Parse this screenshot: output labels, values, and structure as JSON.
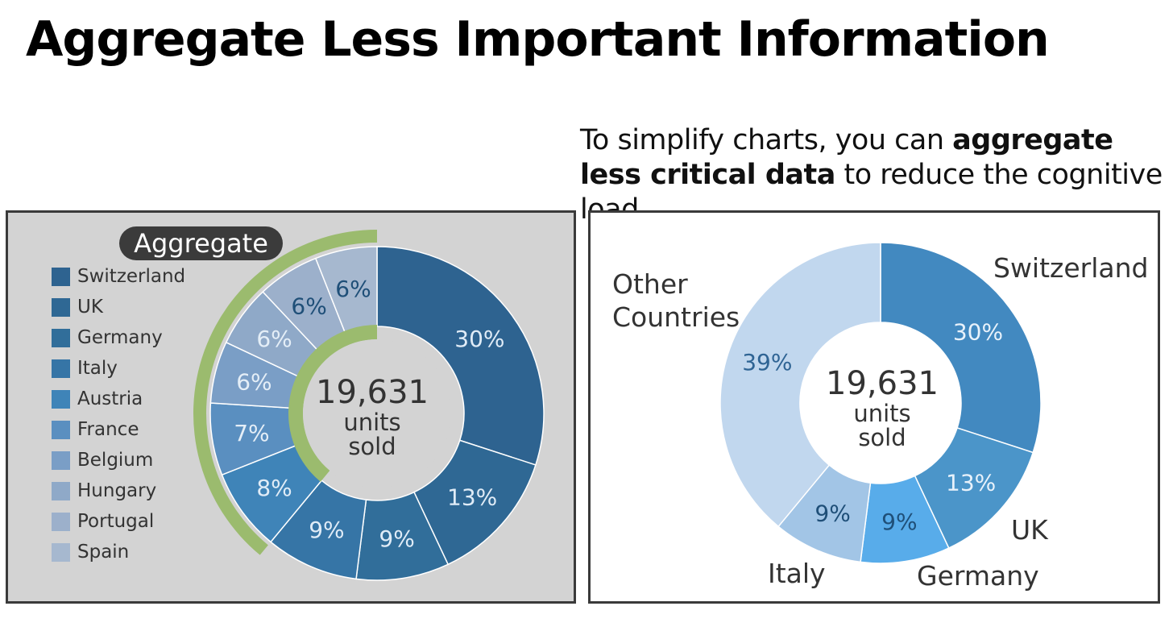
{
  "title": "Aggregate Less Important Information",
  "intro": {
    "part1": "To simplify charts, you can ",
    "bold": "aggregate less critical data",
    "part2": " to reduce the cognitive load."
  },
  "left_panel": {
    "badge": "Aggregate",
    "center": {
      "value": "19,631",
      "line1": "units",
      "line2": "sold"
    }
  },
  "right_panel": {
    "center": {
      "value": "19,631",
      "line1": "units",
      "line2": "sold"
    },
    "outer_labels": {
      "Other Countries": [
        "Other",
        "Countries"
      ],
      "Switzerland": [
        "Switzerland"
      ],
      "UK": [
        "UK"
      ],
      "Germany": [
        "Germany"
      ],
      "Italy": [
        "Italy"
      ]
    }
  },
  "colors": {
    "aggregate_arc": "#9bbb6e",
    "left_background": "#d3d3d3",
    "badge": "#3b3b3b"
  },
  "chart_data": [
    {
      "type": "pie",
      "variant": "donut",
      "series": [
        {
          "labels": [
            "Switzerland",
            "UK",
            "Germany",
            "Italy",
            "Austria",
            "France",
            "Belgium",
            "Hungary",
            "Portugal",
            "Spain"
          ],
          "values": [
            30,
            13,
            9,
            9,
            8,
            7,
            6,
            6,
            6,
            6
          ],
          "value_labels": [
            "30%",
            "13%",
            "9%",
            "9%",
            "8%",
            "7%",
            "6%",
            "6%",
            "6%",
            "6%"
          ],
          "colors": [
            "#2e6390",
            "#2f6894",
            "#316e9a",
            "#3675a6",
            "#3f84b8",
            "#5a8fc0",
            "#7a9ec6",
            "#8fa9c8",
            "#9cb0cb",
            "#a6b8cf"
          ],
          "label_colors": [
            "#e0ecf7",
            "#e0ecf7",
            "#e0ecf7",
            "#e0ecf7",
            "#e0ecf7",
            "#e4eef7",
            "#e4eef7",
            "#e4eef7",
            "#1f4f78",
            "#1f4f78"
          ]
        }
      ],
      "legend": "left",
      "annotation": "Aggregate",
      "aggregated_range": [
        "Austria",
        "Spain"
      ]
    },
    {
      "type": "pie",
      "variant": "donut",
      "series": [
        {
          "labels": [
            "Switzerland",
            "UK",
            "Germany",
            "Italy",
            "Other Countries"
          ],
          "values": [
            30,
            13,
            9,
            9,
            39
          ],
          "value_labels": [
            "30%",
            "13%",
            "9%",
            "9%",
            "39%"
          ],
          "colors": [
            "#4289c0",
            "#4b95c9",
            "#58acea",
            "#a2c5e6",
            "#c1d7ee"
          ],
          "label_colors": [
            "#e8f2fb",
            "#e8f2fb",
            "#1f4f78",
            "#1f4f78",
            "#2f6494"
          ]
        }
      ],
      "legend": "none"
    }
  ]
}
